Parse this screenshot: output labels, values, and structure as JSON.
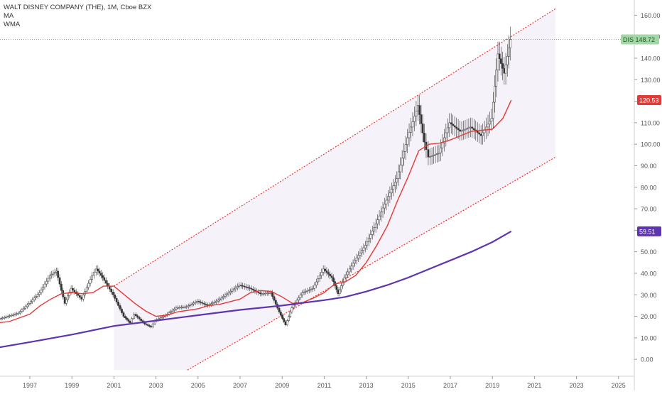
{
  "header": {
    "title": "WALT DISNEY COMPANY (THE), 1M, Cboe BZX",
    "indicator_1": "MA",
    "indicator_2": "WMA"
  },
  "price_label": {
    "symbol": "DIS",
    "value": "148.72",
    "color": "#43a047"
  },
  "ma_label": {
    "value": "120.53",
    "color": "#e53935"
  },
  "wma_label": {
    "value": "59.51",
    "color": "#5e35b1"
  },
  "chart_data": {
    "type": "line",
    "interval": "1M",
    "x_axis": {
      "ticks": [
        "1997",
        "1999",
        "2001",
        "2003",
        "2005",
        "2007",
        "2009",
        "2011",
        "2013",
        "2015",
        "2017",
        "2019",
        "2021",
        "2023",
        "2025"
      ],
      "range": [
        1995.5,
        2026.0
      ]
    },
    "y_axis": {
      "ticks": [
        "0.00",
        "10.00",
        "20.00",
        "30.00",
        "40.00",
        "50.00",
        "60.00",
        "70.00",
        "80.00",
        "90.00",
        "100.00",
        "110.00",
        "120.00",
        "130.00",
        "140.00",
        "150.00",
        "160.00"
      ],
      "range": [
        -5,
        167
      ]
    },
    "series": [
      {
        "name": "DIS",
        "kind": "price",
        "color": "#26a69a",
        "x": [
          1995.5,
          1996.0,
          1996.5,
          1997.0,
          1997.5,
          1998.0,
          1998.3,
          1998.7,
          1999.0,
          1999.5,
          2000.0,
          2000.2,
          2000.5,
          2001.0,
          2001.5,
          2001.8,
          2002.0,
          2002.5,
          2002.8,
          2003.0,
          2003.5,
          2004.0,
          2004.5,
          2005.0,
          2005.5,
          2006.0,
          2006.5,
          2007.0,
          2007.5,
          2008.0,
          2008.5,
          2008.9,
          2009.2,
          2009.5,
          2010.0,
          2010.5,
          2011.0,
          2011.4,
          2011.7,
          2012.0,
          2012.5,
          2013.0,
          2013.5,
          2014.0,
          2014.5,
          2015.0,
          2015.5,
          2015.8,
          2016.0,
          2016.5,
          2017.0,
          2017.5,
          2018.0,
          2018.5,
          2019.0,
          2019.3,
          2019.6,
          2019.9
        ],
        "values": [
          18.5,
          20.0,
          21.5,
          26.0,
          31.0,
          39.0,
          41.0,
          26.0,
          33.0,
          28.0,
          39.0,
          42.0,
          38.0,
          30.0,
          20.0,
          17.0,
          21.0,
          16.5,
          15.0,
          18.0,
          20.5,
          24.0,
          24.5,
          27.0,
          25.0,
          27.5,
          31.0,
          34.5,
          33.0,
          30.5,
          31.0,
          22.0,
          16.0,
          24.0,
          31.0,
          33.0,
          42.0,
          38.0,
          30.5,
          38.0,
          46.0,
          53.0,
          63.0,
          74.0,
          84.0,
          103.0,
          118.0,
          101.0,
          94.0,
          96.0,
          110.0,
          106.0,
          108.0,
          104.0,
          112.0,
          142.0,
          133.0,
          148.72
        ]
      },
      {
        "name": "MA",
        "kind": "line",
        "color": "#e53935",
        "x": [
          1995.5,
          1996.0,
          1997.0,
          1997.5,
          1998.0,
          1998.5,
          1999.0,
          1999.5,
          2000.0,
          2000.5,
          2001.0,
          2001.5,
          2002.0,
          2002.5,
          2003.0,
          2003.5,
          2004.0,
          2005.0,
          2005.5,
          2006.0,
          2007.0,
          2007.5,
          2008.0,
          2008.5,
          2009.0,
          2009.5,
          2010.0,
          2010.5,
          2011.0,
          2011.5,
          2012.0,
          2012.5,
          2013.0,
          2013.5,
          2014.0,
          2014.5,
          2015.0,
          2015.5,
          2016.0,
          2016.5,
          2017.0,
          2017.5,
          2018.0,
          2018.5,
          2019.0,
          2019.5,
          2019.9
        ],
        "values": [
          17.0,
          17.5,
          21.0,
          25.0,
          28.0,
          30.5,
          31.0,
          30.5,
          31.0,
          34.0,
          34.0,
          30.0,
          26.0,
          22.5,
          20.0,
          20.5,
          22.0,
          23.5,
          25.0,
          25.5,
          28.0,
          31.0,
          32.0,
          31.5,
          29.0,
          26.0,
          26.5,
          28.5,
          31.0,
          35.0,
          36.0,
          39.0,
          45.0,
          53.0,
          62.0,
          74.0,
          85.0,
          97.0,
          100.0,
          100.5,
          102.0,
          104.0,
          106.0,
          106.5,
          107.0,
          112.0,
          120.53
        ]
      },
      {
        "name": "WMA",
        "kind": "line",
        "color": "#5e35b1",
        "x": [
          1995.5,
          1997.0,
          1999.0,
          2001.0,
          2003.0,
          2005.0,
          2007.0,
          2009.0,
          2011.0,
          2012.0,
          2013.0,
          2014.0,
          2015.0,
          2016.0,
          2017.0,
          2018.0,
          2019.0,
          2019.9
        ],
        "values": [
          5.5,
          8.0,
          11.5,
          15.5,
          18.0,
          20.5,
          23.0,
          25.0,
          27.5,
          29.0,
          31.5,
          34.5,
          38.0,
          42.0,
          46.0,
          50.0,
          54.5,
          59.51
        ]
      }
    ],
    "channel": {
      "color": "#e53935",
      "upper": {
        "x": [
          2001.0,
          2022.0
        ],
        "values": [
          34.0,
          163.0
        ]
      },
      "lower": {
        "x": [
          2004.5,
          2022.0
        ],
        "values": [
          -5.0,
          94.0
        ]
      },
      "fill_color": "#ede7f6"
    },
    "last_price_line": {
      "value": 148.72,
      "color": "#43a047"
    },
    "grid": false
  }
}
